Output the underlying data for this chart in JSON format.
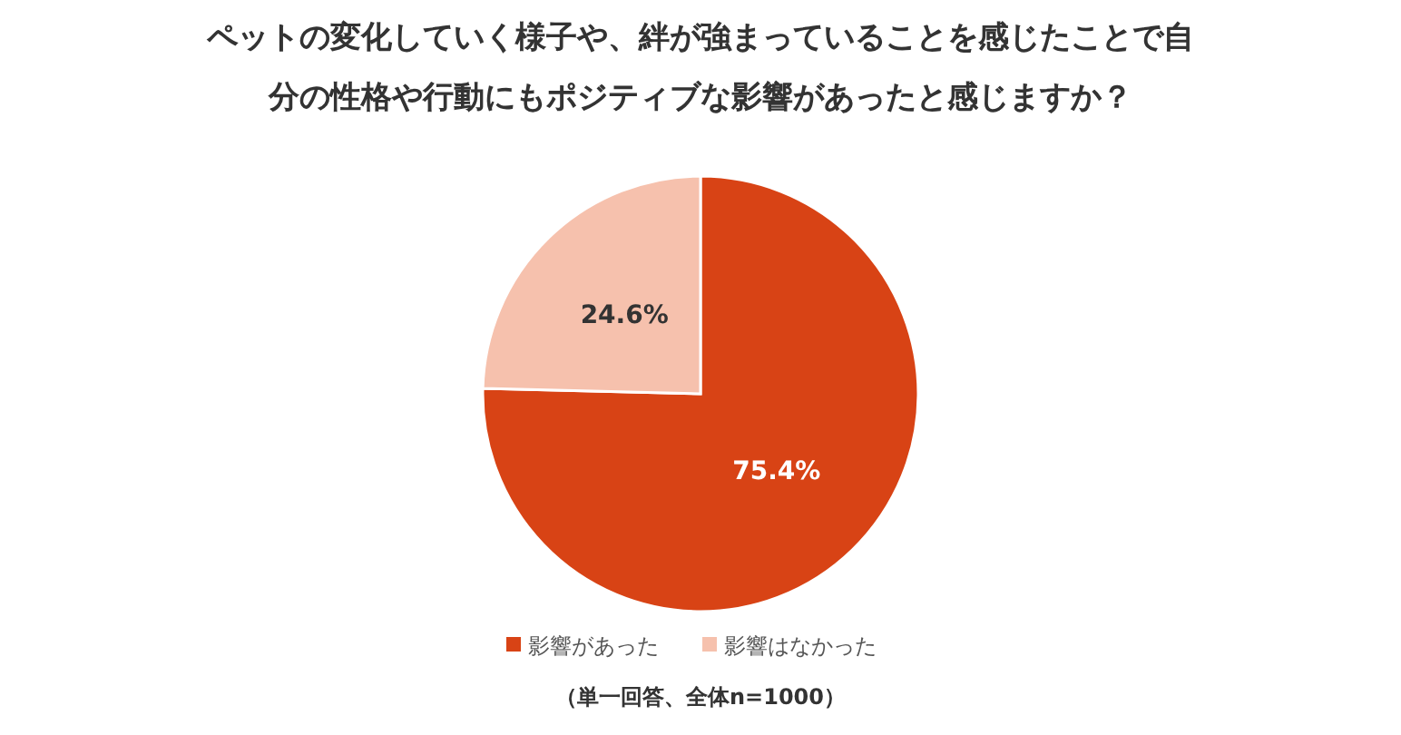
{
  "chart_data": {
    "type": "pie",
    "title": "ペットの変化していく様子や、絆が強まっていることを感じたことで自分の性格や行動にもポジティブな影響があったと感じますか？",
    "categories": [
      "影響があった",
      "影響はなかった"
    ],
    "values": [
      75.4,
      24.6
    ],
    "colors": [
      "#d84315",
      "#f6c1ad"
    ],
    "value_labels": [
      "75.4%",
      "24.6%"
    ],
    "legend": "bottom",
    "annotations": [
      "（単一回答、全体n=1000）"
    ]
  }
}
